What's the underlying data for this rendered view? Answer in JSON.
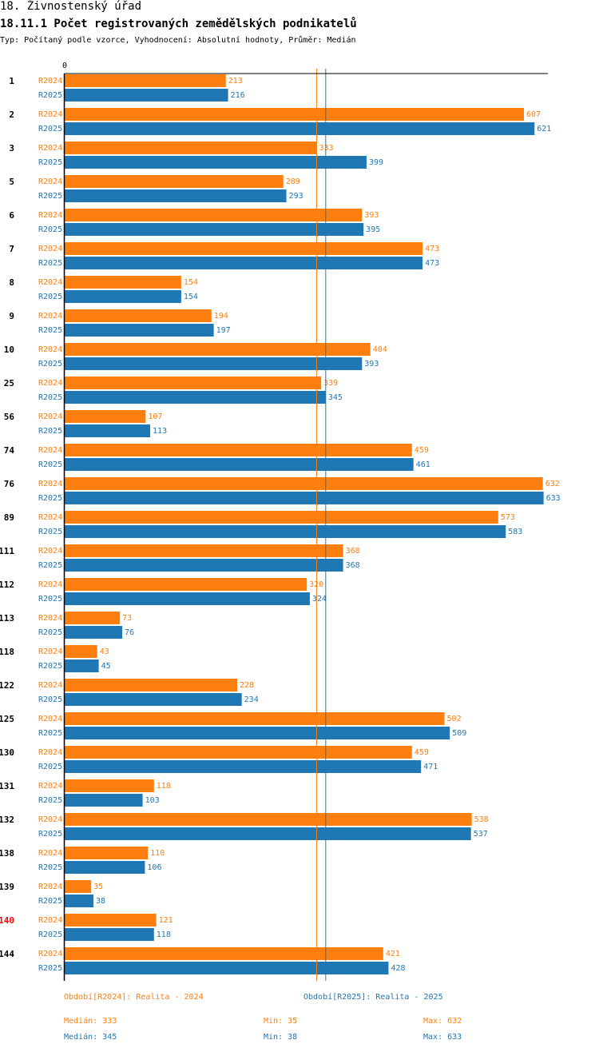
{
  "header": {
    "section": "18. Živnostenský úřad",
    "title": "18.11.1 Počet registrovaných zemědělských podnikatelů",
    "subtitle": "Typ: Počítaný podle vzorce, Vyhodnocení: Absolutní hodnoty, Průměr: Medián"
  },
  "colors": {
    "r2024": "#ff7f0e",
    "r2025": "#1f77b4",
    "highlight": "#ff0000",
    "axis": "#000000"
  },
  "chart_data": {
    "type": "bar",
    "orientation": "horizontal",
    "xlim": [
      0,
      650
    ],
    "x_tick_labels": [
      "0"
    ],
    "highlighted_category": "140",
    "categories": [
      "1",
      "2",
      "3",
      "5",
      "6",
      "7",
      "8",
      "9",
      "10",
      "25",
      "56",
      "74",
      "76",
      "89",
      "111",
      "112",
      "113",
      "118",
      "122",
      "125",
      "130",
      "131",
      "132",
      "138",
      "139",
      "140",
      "144"
    ],
    "series": [
      {
        "name": "R2024",
        "color": "#ff7f0e",
        "values": [
          213,
          607,
          333,
          289,
          393,
          473,
          154,
          194,
          404,
          339,
          107,
          459,
          632,
          573,
          368,
          320,
          73,
          43,
          228,
          502,
          459,
          118,
          538,
          110,
          35,
          121,
          421
        ]
      },
      {
        "name": "R2025",
        "color": "#1f77b4",
        "values": [
          216,
          621,
          399,
          293,
          395,
          473,
          154,
          197,
          393,
          345,
          113,
          461,
          633,
          583,
          368,
          324,
          76,
          45,
          234,
          509,
          471,
          103,
          537,
          106,
          38,
          118,
          428
        ]
      }
    ],
    "reference_lines": [
      {
        "series": "R2024",
        "value": 333
      },
      {
        "series": "R2025",
        "value": 345
      }
    ]
  },
  "legend": {
    "r2024": "Období[R2024]: Realita - 2024",
    "r2025": "Období[R2025]: Realita - 2025"
  },
  "stats": {
    "r2024": {
      "median": "Medián: 333",
      "min": "Min: 35",
      "max": "Max: 632"
    },
    "r2025": {
      "median": "Medián: 345",
      "min": "Min: 38",
      "max": "Max: 633"
    }
  }
}
